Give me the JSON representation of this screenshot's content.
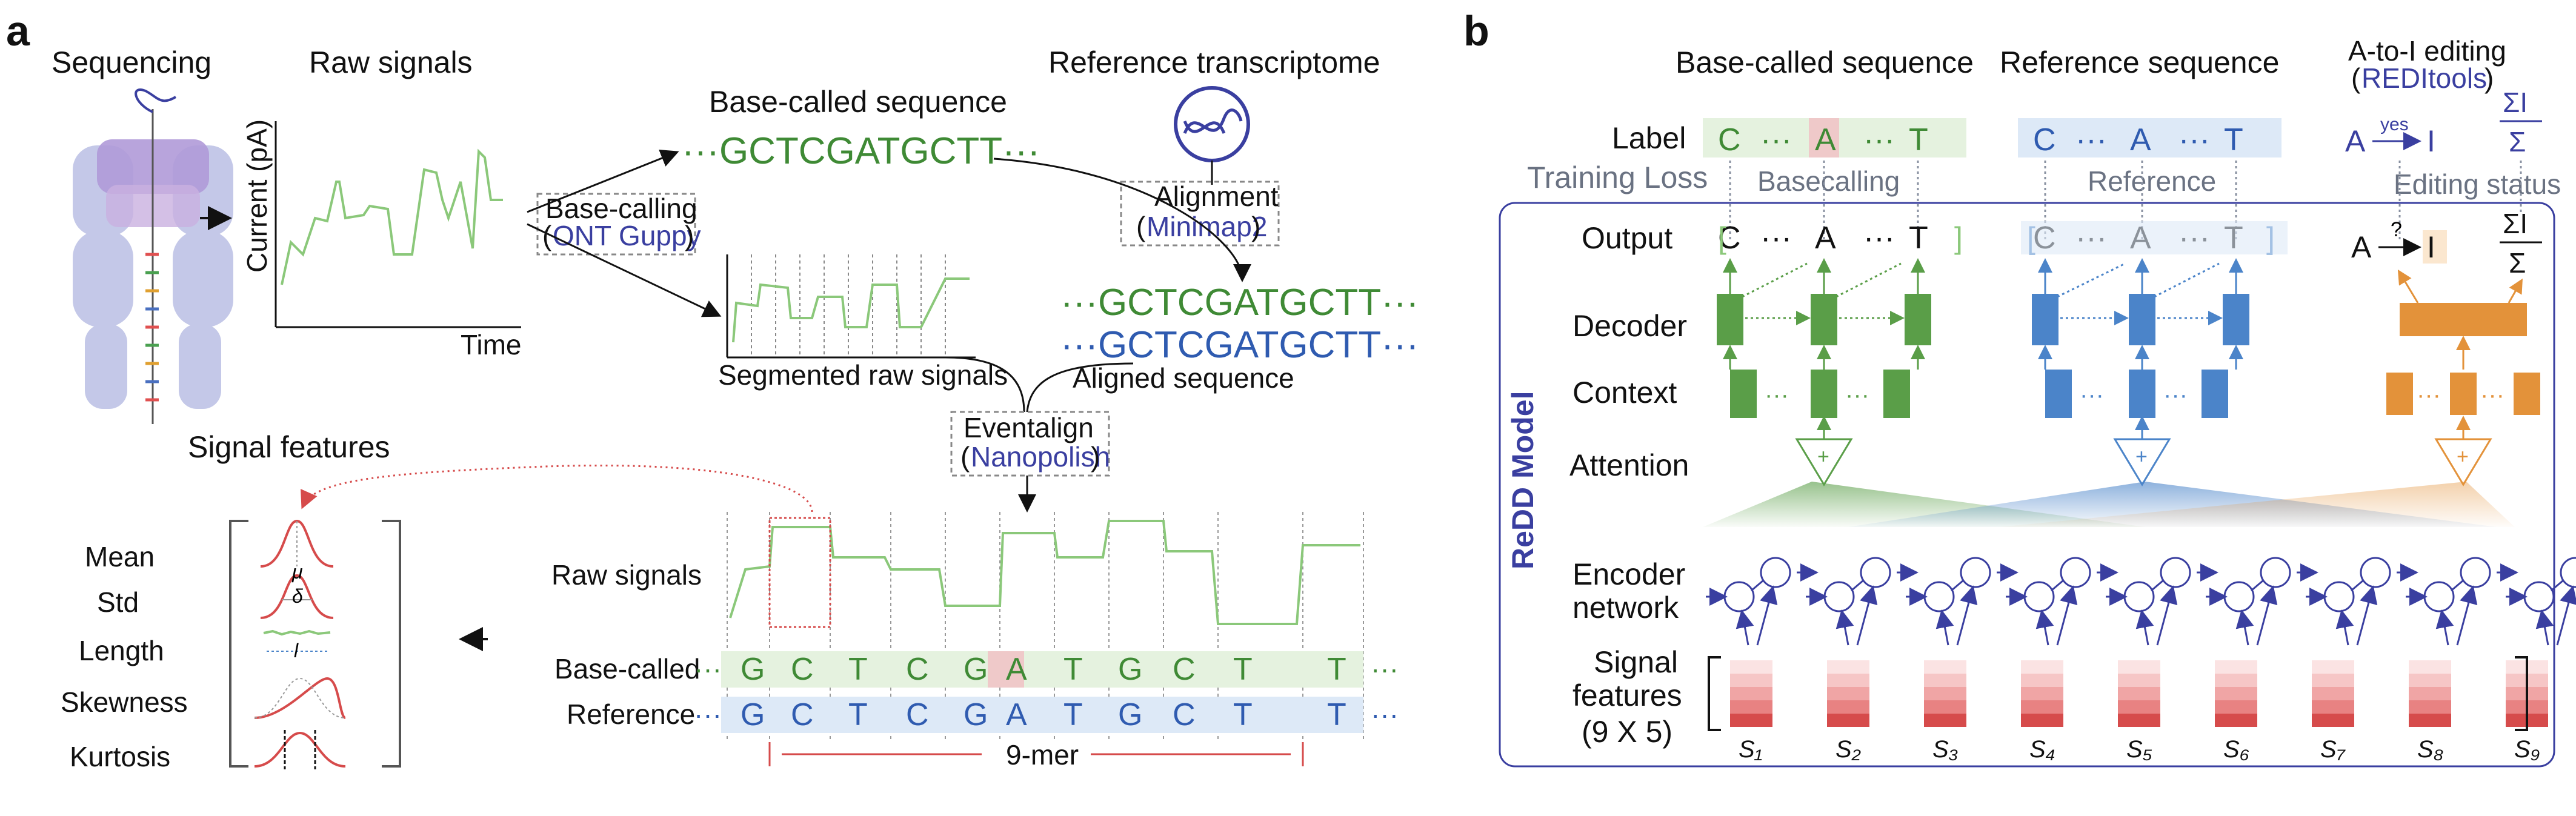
{
  "panel_a": {
    "label": "a",
    "sequencing": "Sequencing",
    "raw_signals_title": "Raw signals",
    "axis_y": "Current (pA)",
    "axis_x": "Time",
    "basecalling": "Base-calling",
    "basecalling_tool": "ONT Guppy",
    "basecalled_title": "Base-called sequence",
    "basecalled_seq": "···GCTCGATGCTT···",
    "reference_title": "Reference transcriptome",
    "alignment": "Alignment",
    "alignment_tool": "Minimap2",
    "segmented_label": "Segmented raw signals",
    "aligned_seq1": "···GCTCGATGCTT···",
    "aligned_seq2": "···GCTCGATGCTT···",
    "aligned_label": "Aligned sequence",
    "eventalign": "Eventalign",
    "eventalign_tool": "Nanopolish",
    "signal_features_title": "Signal features",
    "features": [
      "Mean",
      "Std",
      "Length",
      "Skewness",
      "Kurtosis"
    ],
    "feature_symbols": [
      "μ",
      "δ",
      "l"
    ],
    "raw_signals_label": "Raw signals",
    "basecalled_row_label": "Base-called",
    "reference_row_label": "Reference",
    "basecalled_bases": [
      "G",
      "C",
      "T",
      "C",
      "G",
      "A",
      "T",
      "G",
      "C",
      "T",
      "T"
    ],
    "reference_bases": [
      "G",
      "C",
      "T",
      "C",
      "G",
      "A",
      "T",
      "G",
      "C",
      "T",
      "T"
    ],
    "dots": "···",
    "kmer": "9-mer"
  },
  "panel_b": {
    "label": "b",
    "col1_title": "Base-called sequence",
    "col2_title": "Reference  sequence",
    "col3_title": "A-to-I editing",
    "col3_tool": "REDItools",
    "label_row": "Label",
    "training_loss": "Training Loss",
    "label_bases1": [
      "C",
      "···",
      "A",
      "···",
      "T"
    ],
    "label_bases2": [
      "C",
      "···",
      "A",
      "···",
      "T"
    ],
    "yes": "yes",
    "q": "?",
    "a_sym": "A",
    "i_sym": "I",
    "sum_top": "ΣI",
    "sum_bot": "Σ",
    "basecalling": "Basecalling",
    "reference": "Reference",
    "editing_status": "Editing status",
    "model_label": "ReDD Model",
    "rows": [
      "Output",
      "Decoder",
      "Context",
      "Attention",
      "Encoder",
      "network",
      "Signal",
      "features",
      "(9 X 5)"
    ],
    "output_bases1": [
      "C",
      "···",
      "A",
      "···",
      "T"
    ],
    "output_bases2": [
      "C",
      "···",
      "A",
      "···",
      "T"
    ],
    "s_labels": [
      "S₁",
      "S₂",
      "S₃",
      "S₄",
      "S₅",
      "S₆",
      "S₇",
      "S₈",
      "S₉"
    ],
    "colors": {
      "green": "#5a9e48",
      "blue": "#4b84c9",
      "orange": "#e3923a",
      "navy": "#3a3fa0",
      "red": "#d64b4b"
    }
  }
}
